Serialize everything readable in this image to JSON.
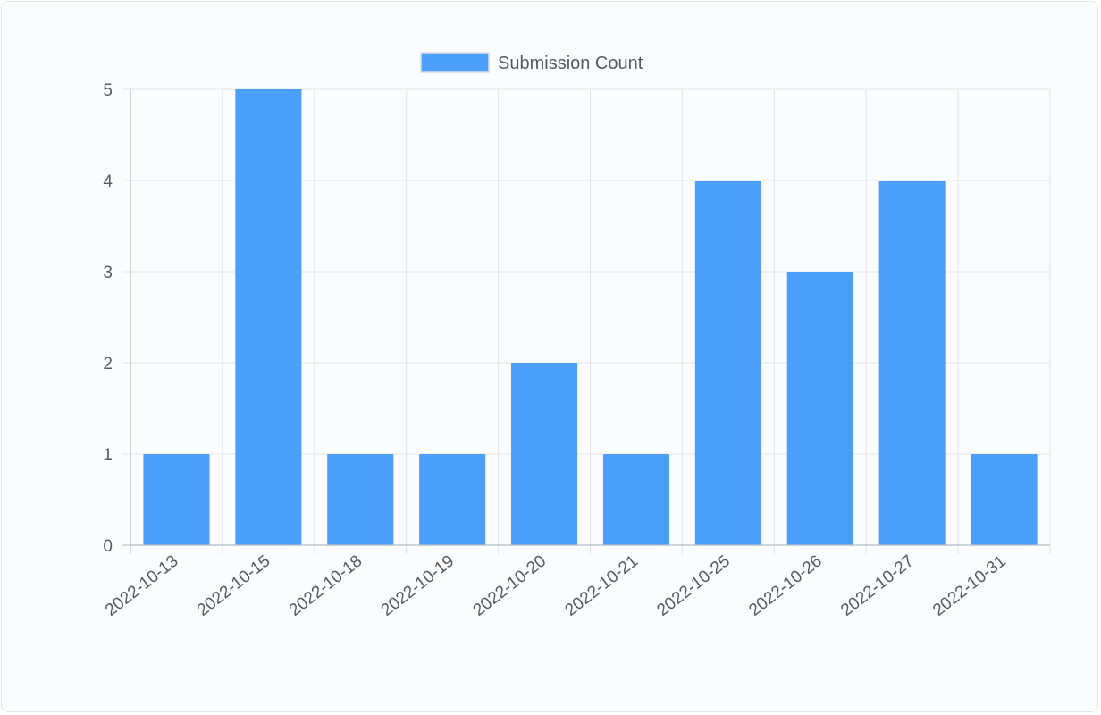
{
  "colors": {
    "bar": "#4c9ffb",
    "grid": "#e1e3e6",
    "axis": "#b7bbc0",
    "text": "#555b62"
  },
  "chart_data": {
    "type": "bar",
    "categories": [
      "2022-10-13",
      "2022-10-15",
      "2022-10-18",
      "2022-10-19",
      "2022-10-20",
      "2022-10-21",
      "2022-10-25",
      "2022-10-26",
      "2022-10-27",
      "2022-10-31"
    ],
    "series": [
      {
        "name": "Submission Count",
        "values": [
          1,
          5,
          1,
          1,
          2,
          1,
          4,
          3,
          4,
          1
        ]
      }
    ],
    "ylim": [
      0,
      5
    ],
    "yticks": [
      0,
      1,
      2,
      3,
      4,
      5
    ],
    "grid": true,
    "legend": "top-center",
    "xlabel_rotation": "diagonal"
  }
}
